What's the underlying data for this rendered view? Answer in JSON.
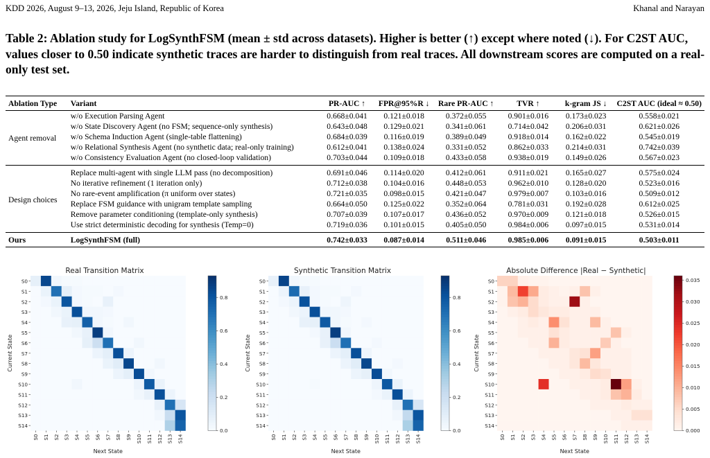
{
  "header": {
    "left": "KDD 2026, August 9–13, 2026, Jeju Island, Republic of Korea",
    "right": "Khanal and Narayan"
  },
  "caption": "Table 2: Ablation study for LogSynthFSM (mean ± std across datasets). Higher is better (↑) except where noted (↓). For C2ST AUC, values closer to 0.50 indicate synthetic traces are harder to distinguish from real traces. All downstream scores are computed on a real-only test set.",
  "table": {
    "columns": [
      "Ablation Type",
      "Variant",
      "PR-AUC ↑",
      "FPR@95%R ↓",
      "Rare PR-AUC ↑",
      "TVR ↑",
      "k-gram JS ↓",
      "C2ST AUC (ideal ≈ 0.50)"
    ],
    "groups": [
      {
        "type": "Agent removal",
        "rows": [
          {
            "variant": "w/o Execution Parsing Agent",
            "values": [
              "0.668±0.041",
              "0.121±0.018",
              "0.372±0.055",
              "0.901±0.016",
              "0.173±0.023",
              "0.558±0.021"
            ]
          },
          {
            "variant": "w/o State Discovery Agent (no FSM; sequence-only synthesis)",
            "values": [
              "0.643±0.048",
              "0.129±0.021",
              "0.341±0.061",
              "0.714±0.042",
              "0.206±0.031",
              "0.621±0.026"
            ]
          },
          {
            "variant": "w/o Schema Induction Agent (single-table flattening)",
            "values": [
              "0.684±0.039",
              "0.116±0.019",
              "0.389±0.049",
              "0.918±0.014",
              "0.162±0.022",
              "0.545±0.019"
            ]
          },
          {
            "variant": "w/o Relational Synthesis Agent (no synthetic data; real-only training)",
            "values": [
              "0.612±0.041",
              "0.138±0.024",
              "0.331±0.052",
              "0.862±0.033",
              "0.214±0.031",
              "0.742±0.039"
            ]
          },
          {
            "variant": "w/o Consistency Evaluation Agent (no closed-loop validation)",
            "values": [
              "0.703±0.044",
              "0.109±0.018",
              "0.433±0.058",
              "0.938±0.019",
              "0.149±0.026",
              "0.567±0.023"
            ]
          }
        ]
      },
      {
        "type": "Design choices",
        "rows": [
          {
            "variant": "Replace multi-agent with single LLM pass (no decomposition)",
            "values": [
              "0.691±0.046",
              "0.114±0.020",
              "0.412±0.061",
              "0.911±0.021",
              "0.165±0.027",
              "0.575±0.024"
            ]
          },
          {
            "variant": "No iterative refinement (1 iteration only)",
            "values": [
              "0.712±0.038",
              "0.104±0.016",
              "0.448±0.053",
              "0.962±0.010",
              "0.128±0.020",
              "0.523±0.016"
            ]
          },
          {
            "variant": "No rare-event amplification (π uniform over states)",
            "values": [
              "0.721±0.035",
              "0.098±0.015",
              "0.421±0.047",
              "0.979±0.007",
              "0.103±0.016",
              "0.509±0.012"
            ]
          },
          {
            "variant": "Replace FSM guidance with unigram template sampling",
            "values": [
              "0.664±0.050",
              "0.125±0.022",
              "0.352±0.064",
              "0.781±0.031",
              "0.192±0.028",
              "0.612±0.025"
            ]
          },
          {
            "variant": "Remove parameter conditioning (template-only synthesis)",
            "values": [
              "0.707±0.039",
              "0.107±0.017",
              "0.436±0.052",
              "0.970±0.009",
              "0.121±0.018",
              "0.526±0.015"
            ]
          },
          {
            "variant": "Use strict deterministic decoding for synthesis (Temp=0)",
            "values": [
              "0.719±0.036",
              "0.101±0.015",
              "0.405±0.050",
              "0.984±0.006",
              "0.097±0.015",
              "0.531±0.014"
            ]
          }
        ]
      }
    ],
    "ours": {
      "type": "Ours",
      "variant": "LogSynthFSM (full)",
      "values": [
        "0.742±0.033",
        "0.087±0.014",
        "0.511±0.046",
        "0.985±0.006",
        "0.091±0.015",
        "0.503±0.011"
      ]
    }
  },
  "chart_data": [
    {
      "type": "heatmap",
      "title": "Real Transition Matrix",
      "xlabel": "Next State",
      "ylabel": "Current State",
      "x_categories": [
        "S0",
        "S1",
        "S2",
        "S3",
        "S4",
        "S5",
        "S6",
        "S7",
        "S8",
        "S9",
        "S10",
        "S11",
        "S12",
        "S13",
        "S14"
      ],
      "y_categories": [
        "S0",
        "S1",
        "S2",
        "S3",
        "S4",
        "S5",
        "S6",
        "S7",
        "S8",
        "S9",
        "S10",
        "S11",
        "S12",
        "S13",
        "S14"
      ],
      "colormap": "Blues",
      "color_range": [
        0,
        0.93
      ],
      "colorbar_ticks": [
        "0.0",
        "0.2",
        "0.4",
        "0.6",
        "0.8"
      ],
      "colorbar_tick_values": [
        0,
        0.2,
        0.4,
        0.6,
        0.8
      ],
      "matrix": [
        [
          0.08,
          0.85,
          0.03,
          0.01,
          0.01,
          0.0,
          0.0,
          0.0,
          0.0,
          0.0,
          0.0,
          0.0,
          0.0,
          0.0,
          0.0
        ],
        [
          0.0,
          0.06,
          0.7,
          0.08,
          0.02,
          0.01,
          0.01,
          0.0,
          0.02,
          0.0,
          0.0,
          0.0,
          0.0,
          0.0,
          0.0
        ],
        [
          0.0,
          0.02,
          0.06,
          0.8,
          0.02,
          0.01,
          0.0,
          0.07,
          0.0,
          0.0,
          0.0,
          0.0,
          0.0,
          0.0,
          0.0
        ],
        [
          0.0,
          0.0,
          0.03,
          0.06,
          0.82,
          0.03,
          0.03,
          0.02,
          0.0,
          0.0,
          0.0,
          0.0,
          0.0,
          0.0,
          0.0
        ],
        [
          0.0,
          0.0,
          0.0,
          0.07,
          0.08,
          0.76,
          0.03,
          0.01,
          0.0,
          0.03,
          0.0,
          0.0,
          0.0,
          0.0,
          0.0
        ],
        [
          0.0,
          0.0,
          0.0,
          0.0,
          0.03,
          0.07,
          0.88,
          0.03,
          0.0,
          0.0,
          0.0,
          0.0,
          0.0,
          0.0,
          0.0
        ],
        [
          0.0,
          0.0,
          0.0,
          0.0,
          0.0,
          0.08,
          0.2,
          0.7,
          0.0,
          0.0,
          0.03,
          0.0,
          0.0,
          0.0,
          0.0
        ],
        [
          0.0,
          0.0,
          0.0,
          0.0,
          0.0,
          0.0,
          0.05,
          0.09,
          0.82,
          0.05,
          0.0,
          0.0,
          0.0,
          0.0,
          0.0
        ],
        [
          0.0,
          0.0,
          0.0,
          0.0,
          0.0,
          0.0,
          0.0,
          0.06,
          0.1,
          0.85,
          0.0,
          0.0,
          0.03,
          0.0,
          0.0
        ],
        [
          0.0,
          0.0,
          0.0,
          0.0,
          0.0,
          0.0,
          0.0,
          0.0,
          0.05,
          0.09,
          0.83,
          0.03,
          0.0,
          0.0,
          0.0
        ],
        [
          0.0,
          0.0,
          0.0,
          0.0,
          0.03,
          0.0,
          0.0,
          0.0,
          0.0,
          0.0,
          0.05,
          0.78,
          0.06,
          0.0,
          0.0
        ],
        [
          0.0,
          0.0,
          0.0,
          0.0,
          0.0,
          0.0,
          0.0,
          0.0,
          0.0,
          0.0,
          0.03,
          0.07,
          0.82,
          0.05,
          0.0
        ],
        [
          0.0,
          0.0,
          0.0,
          0.0,
          0.0,
          0.0,
          0.0,
          0.0,
          0.0,
          0.0,
          0.0,
          0.0,
          0.07,
          0.7,
          0.15
        ],
        [
          0.0,
          0.0,
          0.0,
          0.0,
          0.0,
          0.0,
          0.0,
          0.0,
          0.0,
          0.0,
          0.0,
          0.0,
          0.03,
          0.22,
          0.8
        ],
        [
          0.0,
          0.0,
          0.0,
          0.0,
          0.0,
          0.0,
          0.0,
          0.0,
          0.0,
          0.0,
          0.0,
          0.0,
          0.0,
          0.3,
          0.75
        ]
      ]
    },
    {
      "type": "heatmap",
      "title": "Synthetic Transition Matrix",
      "xlabel": "Next State",
      "ylabel": "Current State",
      "x_categories": [
        "S0",
        "S1",
        "S2",
        "S3",
        "S4",
        "S5",
        "S6",
        "S7",
        "S8",
        "S9",
        "S10",
        "S11",
        "S12",
        "S13",
        "S14"
      ],
      "y_categories": [
        "S0",
        "S1",
        "S2",
        "S3",
        "S4",
        "S5",
        "S6",
        "S7",
        "S8",
        "S9",
        "S10",
        "S11",
        "S12",
        "S13",
        "S14"
      ],
      "colormap": "Blues",
      "color_range": [
        0,
        0.93
      ],
      "colorbar_ticks": [
        "0.0",
        "0.2",
        "0.4",
        "0.6",
        "0.8"
      ],
      "colorbar_tick_values": [
        0,
        0.2,
        0.4,
        0.6,
        0.8
      ],
      "matrix": [
        [
          0.07,
          0.86,
          0.03,
          0.01,
          0.01,
          0.0,
          0.0,
          0.0,
          0.0,
          0.0,
          0.0,
          0.0,
          0.0,
          0.0,
          0.0
        ],
        [
          0.0,
          0.05,
          0.72,
          0.07,
          0.02,
          0.01,
          0.01,
          0.0,
          0.02,
          0.0,
          0.0,
          0.0,
          0.0,
          0.0,
          0.0
        ],
        [
          0.0,
          0.02,
          0.05,
          0.81,
          0.02,
          0.01,
          0.0,
          0.04,
          0.0,
          0.0,
          0.0,
          0.0,
          0.0,
          0.0,
          0.0
        ],
        [
          0.0,
          0.0,
          0.03,
          0.05,
          0.82,
          0.03,
          0.03,
          0.02,
          0.0,
          0.0,
          0.0,
          0.0,
          0.0,
          0.0,
          0.0
        ],
        [
          0.0,
          0.0,
          0.0,
          0.07,
          0.08,
          0.78,
          0.03,
          0.01,
          0.0,
          0.02,
          0.0,
          0.0,
          0.0,
          0.0,
          0.0
        ],
        [
          0.0,
          0.0,
          0.0,
          0.0,
          0.02,
          0.07,
          0.88,
          0.03,
          0.0,
          0.0,
          0.0,
          0.0,
          0.0,
          0.0,
          0.0
        ],
        [
          0.0,
          0.0,
          0.0,
          0.0,
          0.0,
          0.07,
          0.21,
          0.7,
          0.0,
          0.0,
          0.02,
          0.0,
          0.0,
          0.0,
          0.0
        ],
        [
          0.0,
          0.0,
          0.0,
          0.0,
          0.0,
          0.0,
          0.05,
          0.09,
          0.82,
          0.04,
          0.0,
          0.0,
          0.0,
          0.0,
          0.0
        ],
        [
          0.0,
          0.0,
          0.0,
          0.0,
          0.0,
          0.0,
          0.0,
          0.05,
          0.1,
          0.85,
          0.0,
          0.0,
          0.02,
          0.0,
          0.0
        ],
        [
          0.0,
          0.0,
          0.0,
          0.0,
          0.0,
          0.0,
          0.0,
          0.0,
          0.05,
          0.08,
          0.83,
          0.03,
          0.0,
          0.0,
          0.0
        ],
        [
          0.0,
          0.0,
          0.0,
          0.0,
          0.01,
          0.0,
          0.0,
          0.0,
          0.0,
          0.0,
          0.04,
          0.79,
          0.06,
          0.0,
          0.0
        ],
        [
          0.0,
          0.0,
          0.0,
          0.0,
          0.0,
          0.0,
          0.0,
          0.0,
          0.0,
          0.0,
          0.02,
          0.06,
          0.82,
          0.05,
          0.0
        ],
        [
          0.0,
          0.0,
          0.0,
          0.0,
          0.0,
          0.0,
          0.0,
          0.0,
          0.0,
          0.0,
          0.0,
          0.0,
          0.07,
          0.7,
          0.15
        ],
        [
          0.0,
          0.0,
          0.0,
          0.0,
          0.0,
          0.0,
          0.0,
          0.0,
          0.0,
          0.0,
          0.0,
          0.0,
          0.03,
          0.24,
          0.8
        ],
        [
          0.0,
          0.0,
          0.0,
          0.0,
          0.0,
          0.0,
          0.0,
          0.0,
          0.0,
          0.0,
          0.0,
          0.0,
          0.0,
          0.31,
          0.75
        ]
      ]
    },
    {
      "type": "heatmap",
      "title": "Absolute Difference |Real − Synthetic|",
      "xlabel": "Next State",
      "ylabel": "Current State",
      "x_categories": [
        "S0",
        "S1",
        "S2",
        "S3",
        "S4",
        "S5",
        "S6",
        "S7",
        "S8",
        "S9",
        "S10",
        "S11",
        "S12",
        "S13",
        "S14"
      ],
      "y_categories": [
        "S0",
        "S1",
        "S2",
        "S3",
        "S4",
        "S5",
        "S6",
        "S7",
        "S8",
        "S9",
        "S10",
        "S11",
        "S12",
        "S13",
        "S14"
      ],
      "colormap": "Reds",
      "color_range": [
        0,
        0.036
      ],
      "colorbar_ticks": [
        "0.000",
        "0.005",
        "0.010",
        "0.015",
        "0.020",
        "0.025",
        "0.030",
        "0.035"
      ],
      "colorbar_tick_values": [
        0,
        0.005,
        0.01,
        0.015,
        0.02,
        0.025,
        0.03,
        0.035
      ],
      "matrix": [
        [
          0.006,
          0.006,
          0.001,
          0.0005,
          0.0005,
          0,
          0,
          0,
          0,
          0,
          0,
          0,
          0,
          0,
          0
        ],
        [
          0.0005,
          0.009,
          0.022,
          0.011,
          0.002,
          0.001,
          0.0005,
          0.001,
          0.008,
          0.001,
          0,
          0,
          0,
          0,
          0
        ],
        [
          0.0005,
          0.008,
          0.01,
          0.005,
          0.002,
          0.001,
          0.001,
          0.032,
          0.001,
          0,
          0,
          0,
          0,
          0,
          0
        ],
        [
          0,
          0.001,
          0.002,
          0.005,
          0.003,
          0.002,
          0.002,
          0.001,
          0.001,
          0.001,
          0,
          0,
          0,
          0,
          0
        ],
        [
          0,
          0,
          0.001,
          0.002,
          0.001,
          0.014,
          0.004,
          0.001,
          0.001,
          0.009,
          0.001,
          0,
          0,
          0,
          0
        ],
        [
          0,
          0,
          0.001,
          0.001,
          0.001,
          0.004,
          0.002,
          0.001,
          0.001,
          0.001,
          0.001,
          0.008,
          0.001,
          0,
          0
        ],
        [
          0,
          0,
          0,
          0.001,
          0.001,
          0.01,
          0.002,
          0.001,
          0.001,
          0.001,
          0.007,
          0.001,
          0,
          0,
          0
        ],
        [
          0,
          0,
          0,
          0,
          0.001,
          0.001,
          0.001,
          0.003,
          0.004,
          0.012,
          0.001,
          0.001,
          0.001,
          0,
          0
        ],
        [
          0,
          0,
          0,
          0,
          0,
          0.001,
          0.001,
          0.003,
          0.009,
          0.003,
          0.001,
          0.001,
          0.001,
          0,
          0
        ],
        [
          0,
          0,
          0,
          0,
          0,
          0,
          0.001,
          0.001,
          0.002,
          0.005,
          0.004,
          0.001,
          0.001,
          0,
          0
        ],
        [
          0,
          0,
          0,
          0,
          0.024,
          0,
          0,
          0.001,
          0.001,
          0.001,
          0.002,
          0.036,
          0.012,
          0.001,
          0
        ],
        [
          0,
          0,
          0,
          0,
          0,
          0,
          0,
          0,
          0.001,
          0.001,
          0.002,
          0.008,
          0.01,
          0.002,
          0
        ],
        [
          0,
          0,
          0,
          0,
          0,
          0,
          0,
          0,
          0,
          0.001,
          0.001,
          0.001,
          0.002,
          0.001,
          0.001
        ],
        [
          0,
          0,
          0,
          0,
          0,
          0,
          0,
          0,
          0,
          0,
          0,
          0.001,
          0.001,
          0.004,
          0.004
        ],
        [
          0,
          0,
          0,
          0,
          0,
          0,
          0,
          0,
          0,
          0,
          0,
          0,
          0.001,
          0.001,
          0.001
        ]
      ]
    }
  ]
}
